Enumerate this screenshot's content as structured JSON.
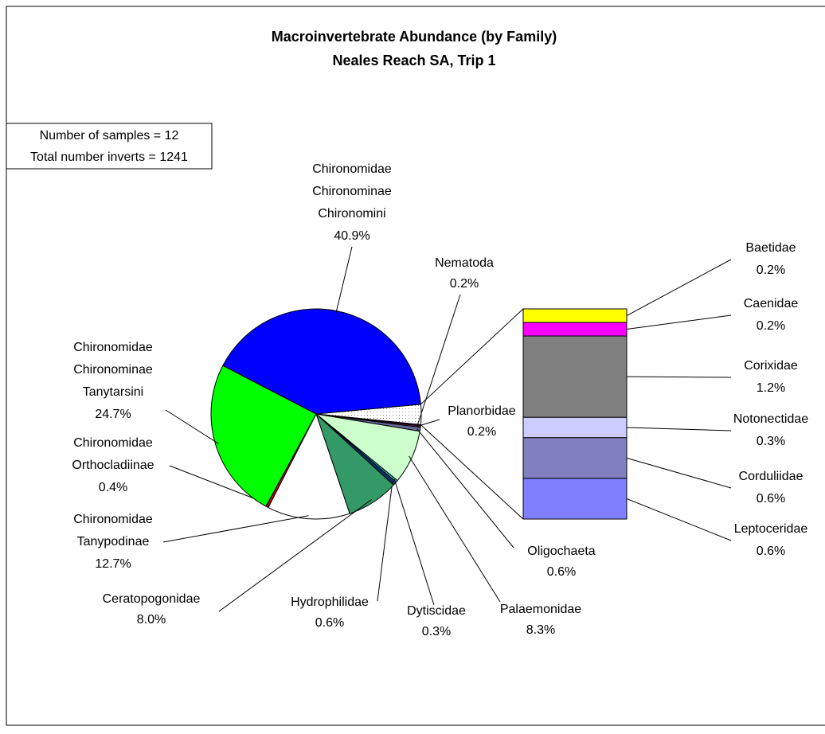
{
  "chart_data": {
    "type": "pie",
    "title": "Macroinvertebrate Abundance (by Family)",
    "subtitle": "Neales Reach SA, Trip 1",
    "annotations": [
      "Number of samples  = 12",
      "Total number inverts = 1241"
    ],
    "categories": [
      [
        "Nematoda"
      ],
      [
        "Planorbidae"
      ],
      [
        "Oligochaeta"
      ],
      [
        "Palaemonidae"
      ],
      [
        "Dytiscidae"
      ],
      [
        "Hydrophilidae"
      ],
      [
        "Ceratopogonidae"
      ],
      [
        "Chironomidae",
        "Tanypodinae"
      ],
      [
        "Chironomidae",
        "Orthocladiinae"
      ],
      [
        "Chironomidae",
        "Chironominae",
        "Tanytarsini"
      ],
      [
        "Chironomidae",
        "Chironominae",
        "Chironomini"
      ]
    ],
    "values": [
      0.2,
      0.2,
      0.6,
      8.3,
      0.3,
      0.6,
      8.0,
      12.7,
      0.4,
      24.7,
      40.9
    ],
    "value_labels": [
      "0.2%",
      "0.2%",
      "0.6%",
      "8.3%",
      "0.3%",
      "0.6%",
      "8.0%",
      "12.7%",
      "0.4%",
      "24.7%",
      "40.9%"
    ],
    "colors": [
      "#800080",
      "#993366",
      "#666699",
      "#ccffcc",
      "#33cccc",
      "#003366",
      "#339966",
      "#ffffff",
      "#cc0000",
      "#00ff00",
      "#0000ff"
    ],
    "bar": {
      "categories": [
        "Baetidae",
        "Caenidae",
        "Corixidae",
        "Notonectidae",
        "Corduliidae",
        "Leptoceridae"
      ],
      "values": [
        0.2,
        0.2,
        1.2,
        0.3,
        0.6,
        0.6
      ],
      "value_labels": [
        "0.2%",
        "0.2%",
        "1.2%",
        "0.3%",
        "0.6%",
        "0.6%"
      ],
      "colors": [
        "#ffff00",
        "#ff00ff",
        "#808080",
        "#ccccff",
        "#8080c0",
        "#8080ff"
      ]
    }
  }
}
